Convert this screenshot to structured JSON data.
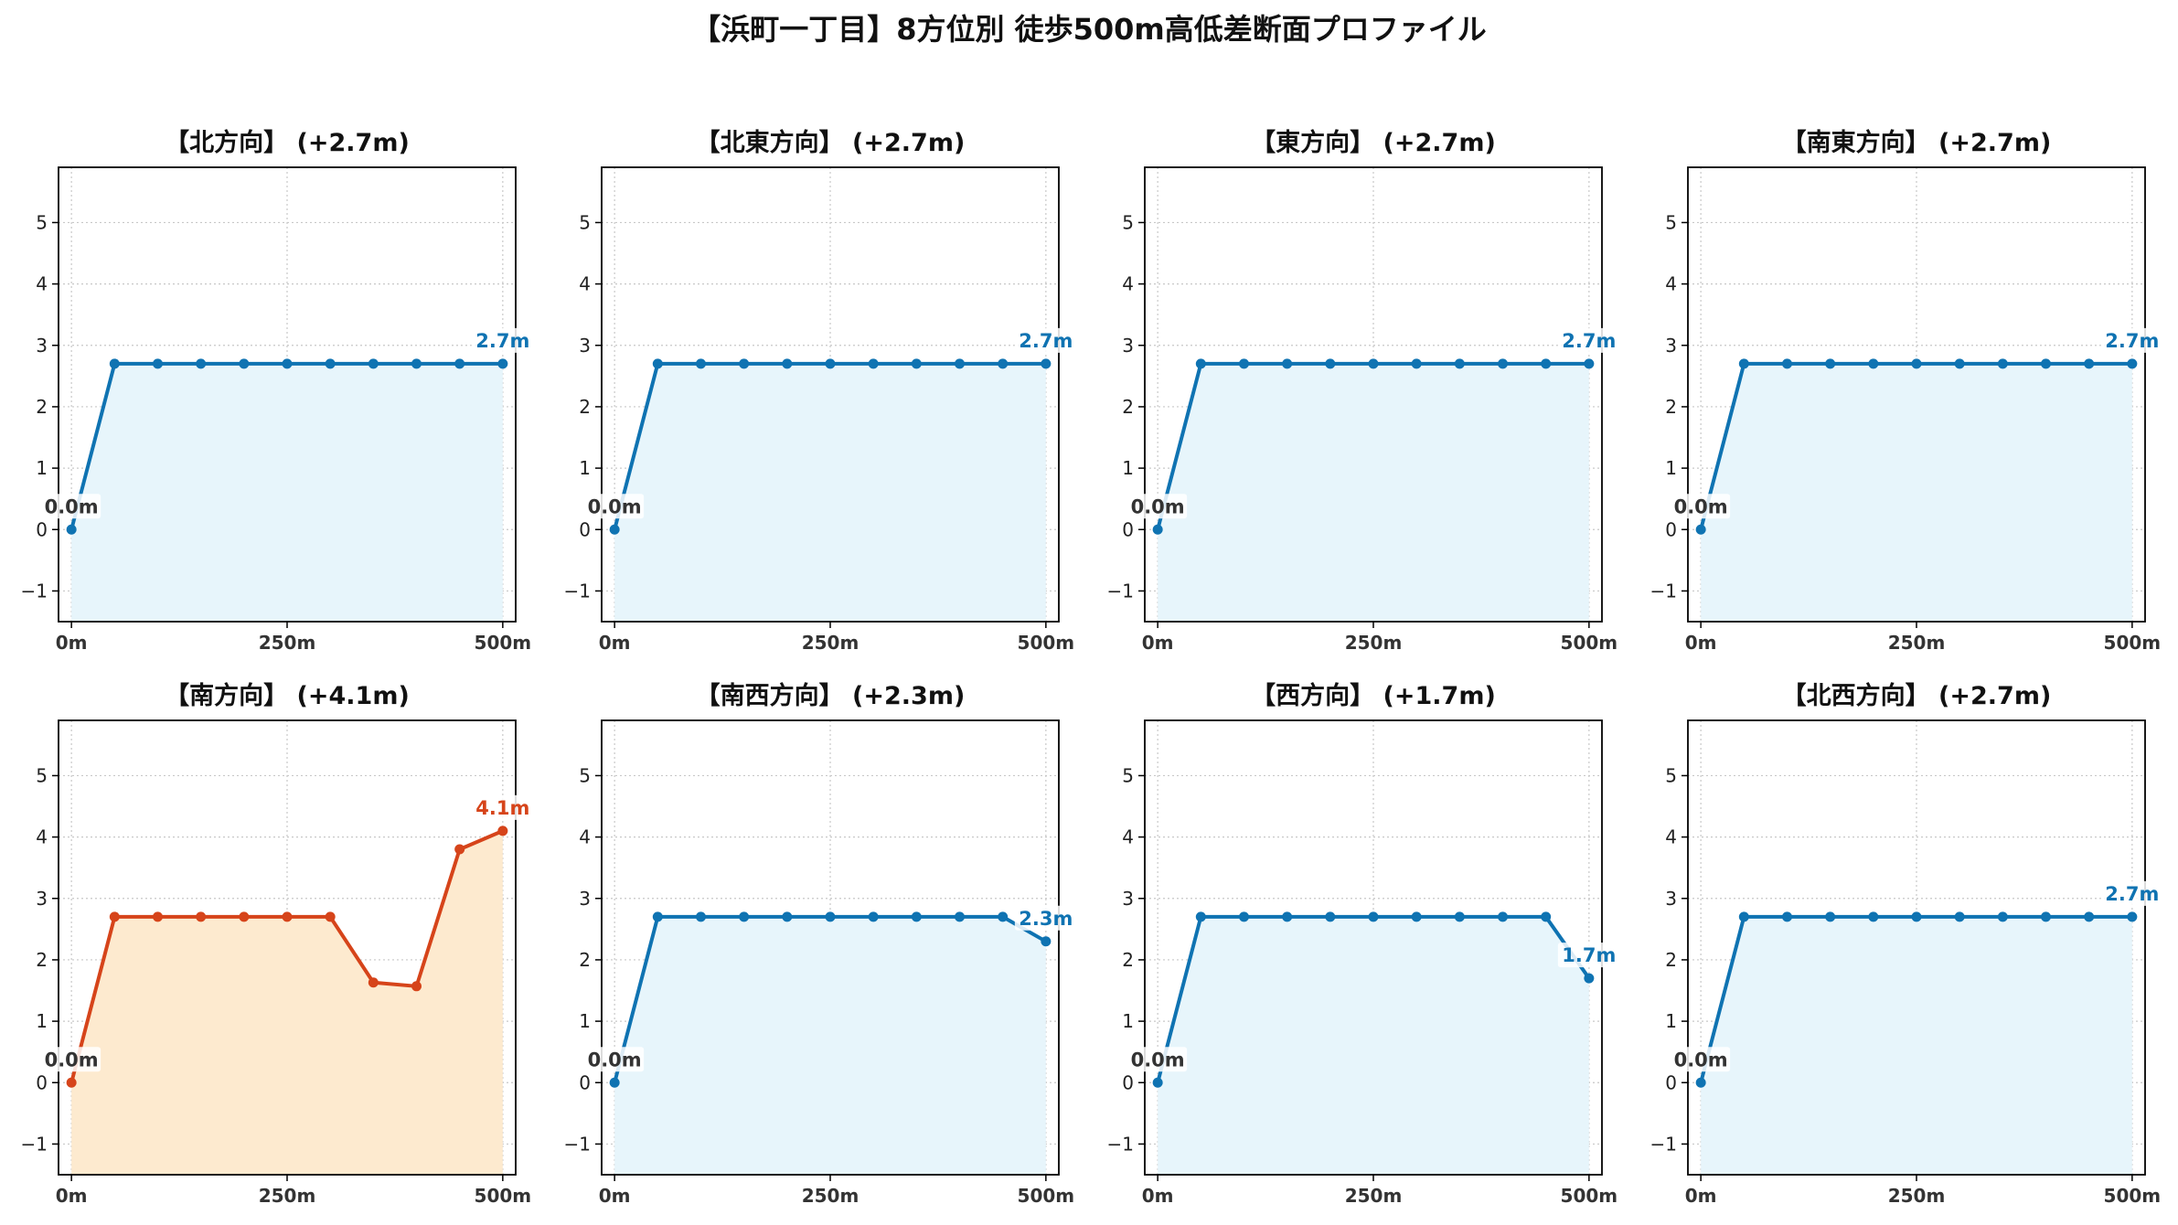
{
  "figure": {
    "suptitle": "【浜町一丁目】8方位別 徒歩500m高低差断面プロファイル"
  },
  "colors": {
    "normal_line": "#0f73b2",
    "normal_fill": "#e7f5fb",
    "highlight_line": "#d6441a",
    "highlight_fill": "#fdeacf",
    "start_label": "#333333",
    "grid": "#c8c8c8"
  },
  "chart_data": [
    {
      "type": "area",
      "title": "【北方向】 (+2.7m)",
      "x": [
        0,
        50,
        100,
        150,
        200,
        250,
        300,
        350,
        400,
        450,
        500
      ],
      "y": [
        0.0,
        2.7,
        2.7,
        2.7,
        2.7,
        2.7,
        2.7,
        2.7,
        2.7,
        2.7,
        2.7
      ],
      "start_label": "0.0m",
      "end_label": "2.7m",
      "highlight": false,
      "xlim": [
        -15,
        515
      ],
      "ylim": [
        -1.5,
        5.9
      ],
      "xticks": [
        0,
        250,
        500
      ],
      "xtick_labels": [
        "0m",
        "250m",
        "500m"
      ],
      "yticks": [
        -1,
        0,
        1,
        2,
        3,
        4,
        5
      ],
      "ytick_labels": [
        "−1",
        "0",
        "1",
        "2",
        "3",
        "4",
        "5"
      ],
      "grid": true
    },
    {
      "type": "area",
      "title": "【北東方向】 (+2.7m)",
      "x": [
        0,
        50,
        100,
        150,
        200,
        250,
        300,
        350,
        400,
        450,
        500
      ],
      "y": [
        0.0,
        2.7,
        2.7,
        2.7,
        2.7,
        2.7,
        2.7,
        2.7,
        2.7,
        2.7,
        2.7
      ],
      "start_label": "0.0m",
      "end_label": "2.7m",
      "highlight": false,
      "xlim": [
        -15,
        515
      ],
      "ylim": [
        -1.5,
        5.9
      ],
      "xticks": [
        0,
        250,
        500
      ],
      "xtick_labels": [
        "0m",
        "250m",
        "500m"
      ],
      "yticks": [
        -1,
        0,
        1,
        2,
        3,
        4,
        5
      ],
      "ytick_labels": [
        "−1",
        "0",
        "1",
        "2",
        "3",
        "4",
        "5"
      ],
      "grid": true
    },
    {
      "type": "area",
      "title": "【東方向】 (+2.7m)",
      "x": [
        0,
        50,
        100,
        150,
        200,
        250,
        300,
        350,
        400,
        450,
        500
      ],
      "y": [
        0.0,
        2.7,
        2.7,
        2.7,
        2.7,
        2.7,
        2.7,
        2.7,
        2.7,
        2.7,
        2.7
      ],
      "start_label": "0.0m",
      "end_label": "2.7m",
      "highlight": false,
      "xlim": [
        -15,
        515
      ],
      "ylim": [
        -1.5,
        5.9
      ],
      "xticks": [
        0,
        250,
        500
      ],
      "xtick_labels": [
        "0m",
        "250m",
        "500m"
      ],
      "yticks": [
        -1,
        0,
        1,
        2,
        3,
        4,
        5
      ],
      "ytick_labels": [
        "−1",
        "0",
        "1",
        "2",
        "3",
        "4",
        "5"
      ],
      "grid": true
    },
    {
      "type": "area",
      "title": "【南東方向】 (+2.7m)",
      "x": [
        0,
        50,
        100,
        150,
        200,
        250,
        300,
        350,
        400,
        450,
        500
      ],
      "y": [
        0.0,
        2.7,
        2.7,
        2.7,
        2.7,
        2.7,
        2.7,
        2.7,
        2.7,
        2.7,
        2.7
      ],
      "start_label": "0.0m",
      "end_label": "2.7m",
      "highlight": false,
      "xlim": [
        -15,
        515
      ],
      "ylim": [
        -1.5,
        5.9
      ],
      "xticks": [
        0,
        250,
        500
      ],
      "xtick_labels": [
        "0m",
        "250m",
        "500m"
      ],
      "yticks": [
        -1,
        0,
        1,
        2,
        3,
        4,
        5
      ],
      "ytick_labels": [
        "−1",
        "0",
        "1",
        "2",
        "3",
        "4",
        "5"
      ],
      "grid": true
    },
    {
      "type": "area",
      "title": "【南方向】 (+4.1m)",
      "x": [
        0,
        50,
        100,
        150,
        200,
        250,
        300,
        350,
        400,
        450,
        500
      ],
      "y": [
        0.0,
        2.7,
        2.7,
        2.7,
        2.7,
        2.7,
        2.7,
        1.63,
        1.57,
        3.8,
        4.1
      ],
      "start_label": "0.0m",
      "end_label": "4.1m",
      "highlight": true,
      "xlim": [
        -15,
        515
      ],
      "ylim": [
        -1.5,
        5.9
      ],
      "xticks": [
        0,
        250,
        500
      ],
      "xtick_labels": [
        "0m",
        "250m",
        "500m"
      ],
      "yticks": [
        -1,
        0,
        1,
        2,
        3,
        4,
        5
      ],
      "ytick_labels": [
        "−1",
        "0",
        "1",
        "2",
        "3",
        "4",
        "5"
      ],
      "grid": true
    },
    {
      "type": "area",
      "title": "【南西方向】 (+2.3m)",
      "x": [
        0,
        50,
        100,
        150,
        200,
        250,
        300,
        350,
        400,
        450,
        500
      ],
      "y": [
        0.0,
        2.7,
        2.7,
        2.7,
        2.7,
        2.7,
        2.7,
        2.7,
        2.7,
        2.7,
        2.3
      ],
      "start_label": "0.0m",
      "end_label": "2.3m",
      "highlight": false,
      "xlim": [
        -15,
        515
      ],
      "ylim": [
        -1.5,
        5.9
      ],
      "xticks": [
        0,
        250,
        500
      ],
      "xtick_labels": [
        "0m",
        "250m",
        "500m"
      ],
      "yticks": [
        -1,
        0,
        1,
        2,
        3,
        4,
        5
      ],
      "ytick_labels": [
        "−1",
        "0",
        "1",
        "2",
        "3",
        "4",
        "5"
      ],
      "grid": true
    },
    {
      "type": "area",
      "title": "【西方向】 (+1.7m)",
      "x": [
        0,
        50,
        100,
        150,
        200,
        250,
        300,
        350,
        400,
        450,
        500
      ],
      "y": [
        0.0,
        2.7,
        2.7,
        2.7,
        2.7,
        2.7,
        2.7,
        2.7,
        2.7,
        2.7,
        1.7
      ],
      "start_label": "0.0m",
      "end_label": "1.7m",
      "highlight": false,
      "xlim": [
        -15,
        515
      ],
      "ylim": [
        -1.5,
        5.9
      ],
      "xticks": [
        0,
        250,
        500
      ],
      "xtick_labels": [
        "0m",
        "250m",
        "500m"
      ],
      "yticks": [
        -1,
        0,
        1,
        2,
        3,
        4,
        5
      ],
      "ytick_labels": [
        "−1",
        "0",
        "1",
        "2",
        "3",
        "4",
        "5"
      ],
      "grid": true
    },
    {
      "type": "area",
      "title": "【北西方向】 (+2.7m)",
      "x": [
        0,
        50,
        100,
        150,
        200,
        250,
        300,
        350,
        400,
        450,
        500
      ],
      "y": [
        0.0,
        2.7,
        2.7,
        2.7,
        2.7,
        2.7,
        2.7,
        2.7,
        2.7,
        2.7,
        2.7
      ],
      "start_label": "0.0m",
      "end_label": "2.7m",
      "highlight": false,
      "xlim": [
        -15,
        515
      ],
      "ylim": [
        -1.5,
        5.9
      ],
      "xticks": [
        0,
        250,
        500
      ],
      "xtick_labels": [
        "0m",
        "250m",
        "500m"
      ],
      "yticks": [
        -1,
        0,
        1,
        2,
        3,
        4,
        5
      ],
      "ytick_labels": [
        "−1",
        "0",
        "1",
        "2",
        "3",
        "4",
        "5"
      ],
      "grid": true
    }
  ]
}
